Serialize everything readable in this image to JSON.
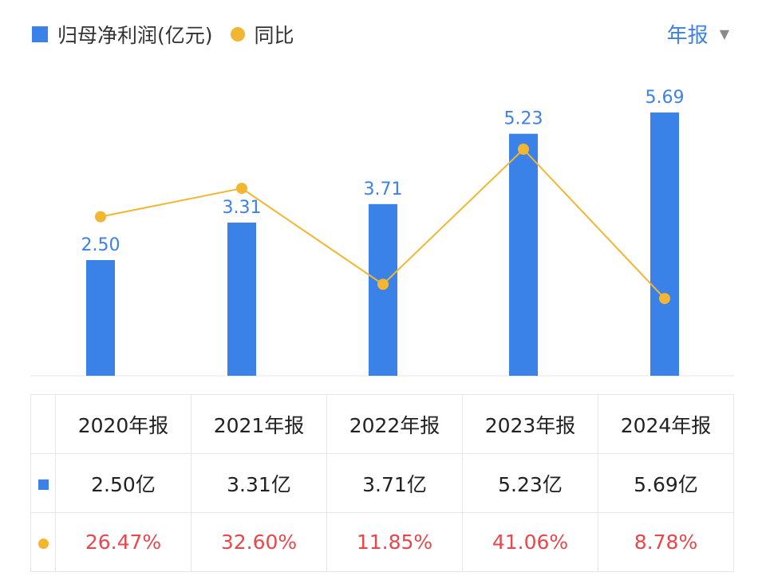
{
  "legend": {
    "bar_label": "归母净利润(亿元)",
    "line_label": "同比"
  },
  "period_selector": {
    "label": "年报",
    "arrow": "▼"
  },
  "colors": {
    "bar": "#3b82e8",
    "line": "#f2b632",
    "accent_text": "#3b82e8",
    "negative_text": "#e8474b"
  },
  "chart_data": {
    "type": "bar",
    "categories": [
      "2020年报",
      "2021年报",
      "2022年报",
      "2023年报",
      "2024年报"
    ],
    "series": [
      {
        "name": "归母净利润(亿元)",
        "type": "bar",
        "values": [
          2.5,
          3.31,
          3.71,
          5.23,
          5.69
        ],
        "labels": [
          "2.50",
          "3.31",
          "3.71",
          "5.23",
          "5.69"
        ]
      },
      {
        "name": "同比",
        "type": "line",
        "values": [
          26.47,
          32.6,
          11.85,
          41.06,
          8.78
        ]
      }
    ]
  },
  "table": {
    "headers": [
      "2020年报",
      "2021年报",
      "2022年报",
      "2023年报",
      "2024年报"
    ],
    "profit_row": [
      "2.50亿",
      "3.31亿",
      "3.71亿",
      "5.23亿",
      "5.69亿"
    ],
    "yoy_row": [
      "26.47%",
      "32.60%",
      "11.85%",
      "41.06%",
      "8.78%"
    ]
  }
}
